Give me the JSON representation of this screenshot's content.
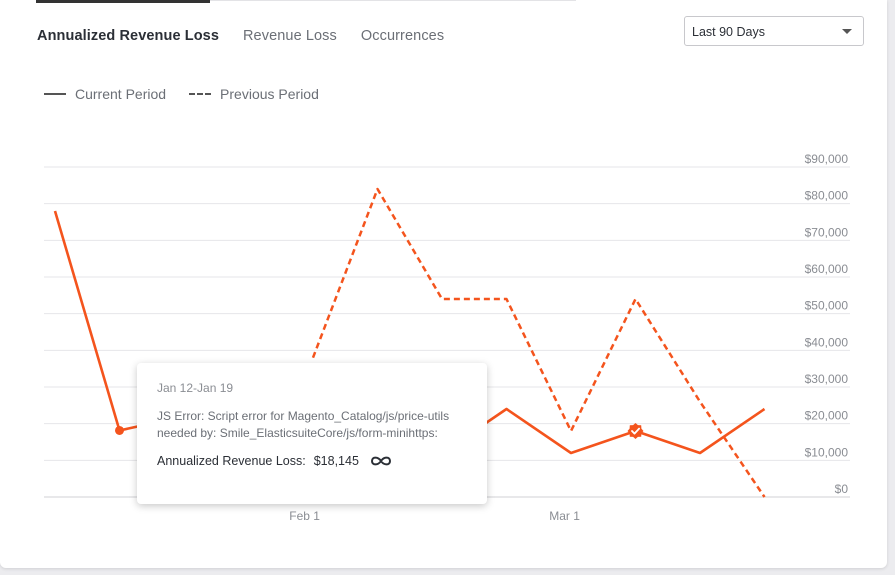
{
  "tabs": [
    {
      "label": "Annualized Revenue Loss",
      "active": true
    },
    {
      "label": "Revenue Loss",
      "active": false
    },
    {
      "label": "Occurrences",
      "active": false
    }
  ],
  "period_select": {
    "value": "Last 90 Days"
  },
  "legend": {
    "current": "Current Period",
    "previous": "Previous Period"
  },
  "colors": {
    "line": "#f4541d",
    "grid": "#e6e6e9",
    "axis_text": "#8a8d93"
  },
  "chart_data": {
    "type": "line",
    "y_tick_labels": [
      "$0",
      "$10,000",
      "$20,000",
      "$30,000",
      "$40,000",
      "$50,000",
      "$60,000",
      "$70,000",
      "$80,000",
      "$90,000"
    ],
    "ylim": [
      0,
      90000
    ],
    "x_tick_labels": [
      "Feb 1",
      "Mar 1"
    ],
    "grid": true,
    "series": [
      {
        "name": "Current Period",
        "style": "solid",
        "points": [
          {
            "week": 0,
            "value": 78000
          },
          {
            "week": 1,
            "value": 18145
          },
          {
            "week": 2,
            "value": 22000
          },
          {
            "week": 3,
            "value": 12000
          },
          {
            "week": 4,
            "value": 14000
          },
          {
            "week": 5,
            "value": 11000
          },
          {
            "week": 6,
            "value": 12000
          },
          {
            "week": 7,
            "value": 24000
          },
          {
            "week": 8,
            "value": 12000
          },
          {
            "week": 9,
            "value": 18000
          },
          {
            "week": 10,
            "value": 12000
          },
          {
            "week": 11,
            "value": 24000
          }
        ]
      },
      {
        "name": "Previous Period",
        "style": "dashed",
        "points": [
          {
            "week": 4,
            "value": 38000
          },
          {
            "week": 5,
            "value": 84000
          },
          {
            "week": 6,
            "value": 54000
          },
          {
            "week": 7,
            "value": 54000
          },
          {
            "week": 8,
            "value": 18000
          },
          {
            "week": 9,
            "value": 54000
          },
          {
            "week": 10,
            "value": 26000
          },
          {
            "week": 11,
            "value": 0
          }
        ]
      }
    ],
    "highlight_points": [
      {
        "week": 1,
        "value": 18145,
        "marker": "dot"
      },
      {
        "week": 9,
        "value": 18000,
        "marker": "check-badge"
      }
    ]
  },
  "tooltip": {
    "date_range": "Jan 12-Jan 19",
    "description": "JS Error: Script error for Magento_Catalog/js/price-utils needed by: Smile_ElasticsuiteCore/js/form-minihttps:",
    "metric_label": "Annualized Revenue Loss:",
    "metric_value": "$18,145",
    "icon": "infinity-icon"
  }
}
